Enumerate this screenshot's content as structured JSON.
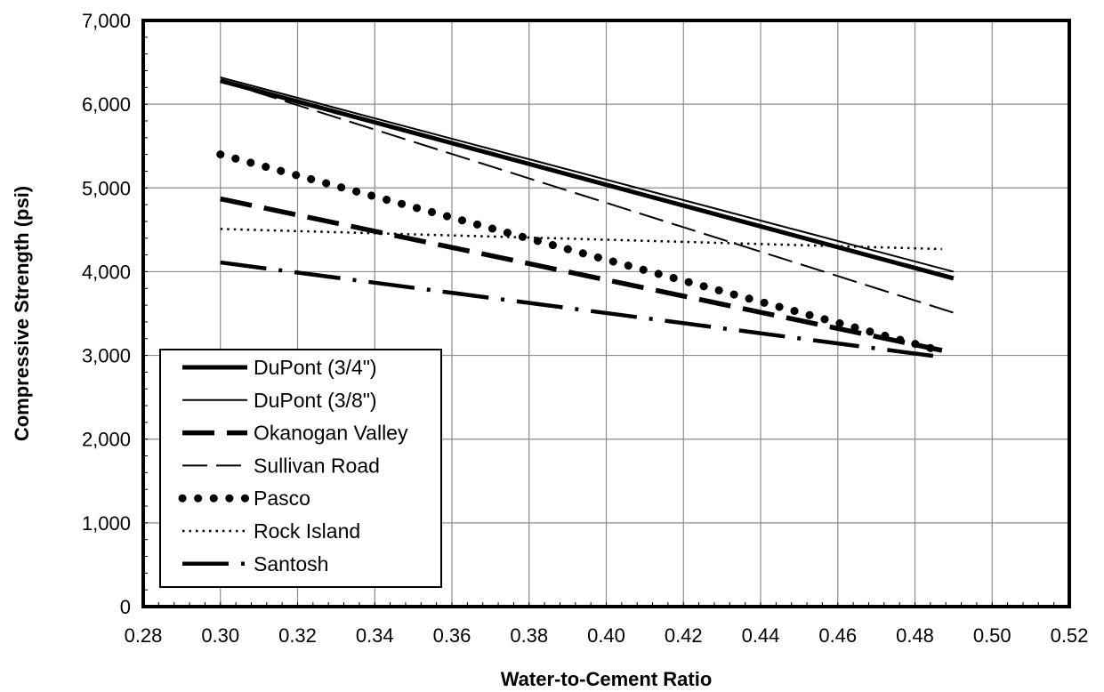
{
  "chart_data": {
    "type": "line",
    "title": "",
    "xlabel": "Water-to-Cement Ratio",
    "ylabel": "Compressive Strength (psi)",
    "xlim": [
      0.28,
      0.52
    ],
    "ylim": [
      0,
      7000
    ],
    "x_ticks": [
      "0.28",
      "0.30",
      "0.32",
      "0.34",
      "0.36",
      "0.38",
      "0.40",
      "0.42",
      "0.44",
      "0.46",
      "0.48",
      "0.50",
      "0.52"
    ],
    "y_ticks": [
      "0",
      "1,000",
      "2,000",
      "3,000",
      "4,000",
      "5,000",
      "6,000",
      "7,000"
    ],
    "grid": true,
    "legend_position": "bottom-left",
    "series": [
      {
        "name": "DuPont (3/4\")",
        "style": "thick-solid",
        "color": "#000000",
        "x": [
          0.3,
          0.49
        ],
        "y": [
          6280,
          3920
        ]
      },
      {
        "name": "DuPont (3/8\")",
        "style": "thin-solid",
        "color": "#000000",
        "x": [
          0.3,
          0.49
        ],
        "y": [
          6320,
          4000
        ]
      },
      {
        "name": "Okanogan Valley",
        "style": "thick-dash",
        "color": "#000000",
        "x": [
          0.3,
          0.487
        ],
        "y": [
          4870,
          3060
        ]
      },
      {
        "name": "Sullivan Road",
        "style": "thin-dash",
        "color": "#000000",
        "x": [
          0.3,
          0.49
        ],
        "y": [
          6280,
          3510
        ]
      },
      {
        "name": "Pasco",
        "style": "round-dot",
        "color": "#000000",
        "x": [
          0.3,
          0.487
        ],
        "y": [
          5400,
          3050
        ]
      },
      {
        "name": "Rock Island",
        "style": "fine-dot",
        "color": "#000000",
        "x": [
          0.3,
          0.487
        ],
        "y": [
          4510,
          4270
        ]
      },
      {
        "name": "Santosh",
        "style": "long-dash-dot",
        "color": "#000000",
        "x": [
          0.3,
          0.487
        ],
        "y": [
          4110,
          2980
        ]
      }
    ]
  }
}
